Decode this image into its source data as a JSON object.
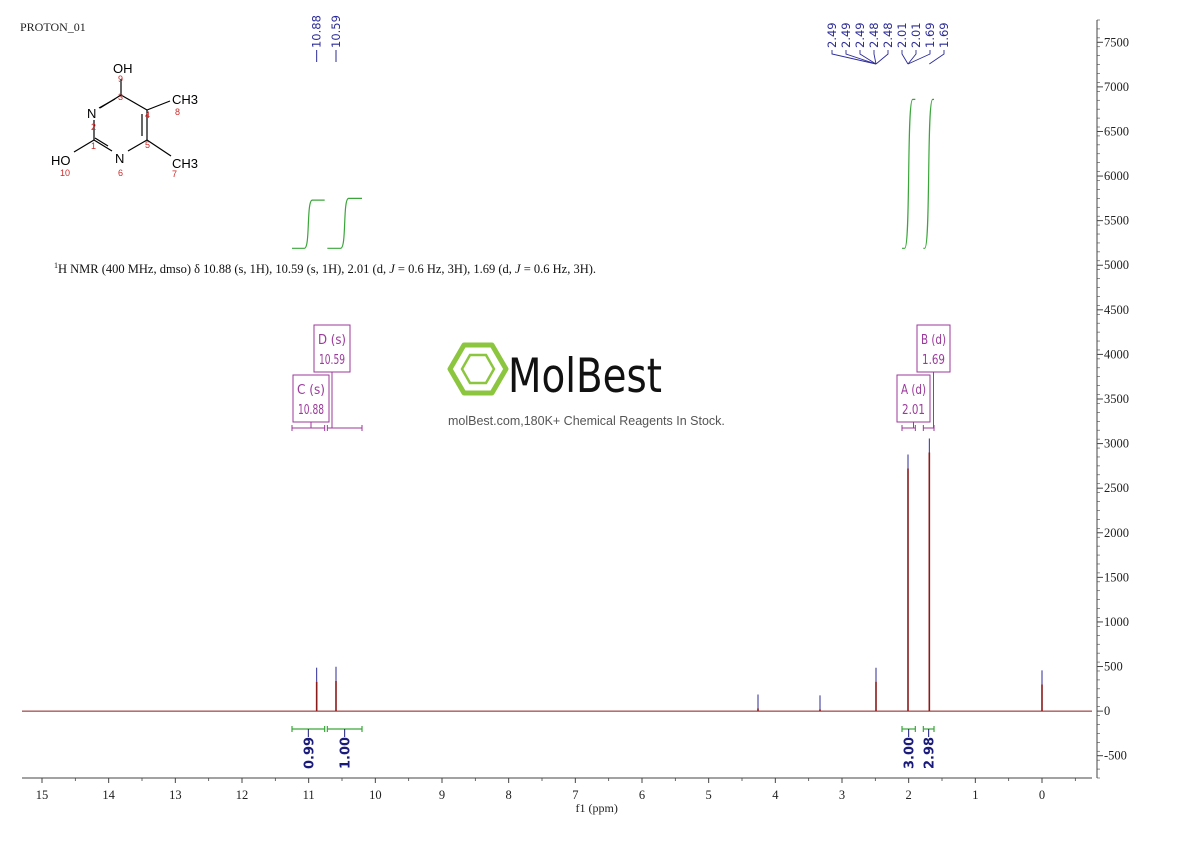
{
  "spectrum_label": "PROTON_01",
  "nmr_summary_parts": {
    "nucleus": "1",
    "head": "H NMR (400 MHz, dmso) δ 10.88 (s, 1H), 10.59 (s, 1H), 2.01 (d, ",
    "j1": "J",
    "mid": " = 0.6 Hz, 3H), 1.69 (d, ",
    "j2": "J",
    "tail": " = 0.6 Hz, 3H)."
  },
  "brand": {
    "name": "MolBest",
    "tagline": "molBest.com,180K+ Chemical Reagents In Stock.",
    "color": "#8cc63f"
  },
  "molecule": {
    "atoms": [
      {
        "label": "OH",
        "num": "9"
      },
      {
        "label": "N",
        "num": "2"
      },
      {
        "label": "",
        "num": "3"
      },
      {
        "label": "",
        "num": "4"
      },
      {
        "label": "CH3",
        "num": "8"
      },
      {
        "label": "",
        "num": "1"
      },
      {
        "label": "",
        "num": "5"
      },
      {
        "label": "HO",
        "num": "10"
      },
      {
        "label": "N",
        "num": "6"
      },
      {
        "label": "CH3",
        "num": "7"
      }
    ]
  },
  "colors": {
    "spectrum": "#8b1a1a",
    "peak_marker": "#2b2b9a",
    "integral": "#3aa63a",
    "multiplet_box": "#9b3a9b",
    "integral_value": "#1a1a7a",
    "axis": "#444444"
  },
  "chart_data": {
    "type": "line",
    "title": "",
    "xlabel": "f1 (ppm)",
    "ylabel": "",
    "xlim": [
      15.3,
      -0.75
    ],
    "ylim": [
      -750,
      7750
    ],
    "x_ticks": [
      15,
      14,
      13,
      12,
      11,
      10,
      9,
      8,
      7,
      6,
      5,
      4,
      3,
      2,
      1,
      0
    ],
    "y_ticks": [
      7500,
      7000,
      6500,
      6000,
      5500,
      5000,
      4500,
      4000,
      3500,
      3000,
      2500,
      2000,
      1500,
      1000,
      500,
      0,
      -500
    ],
    "peaks": [
      {
        "ppm": 10.88,
        "height": 330
      },
      {
        "ppm": 10.59,
        "height": 340
      },
      {
        "ppm": 4.26,
        "height": 30
      },
      {
        "ppm": 3.33,
        "height": 20
      },
      {
        "ppm": 2.49,
        "height": 330
      },
      {
        "ppm": 2.01,
        "height": 2720
      },
      {
        "ppm": 1.69,
        "height": 2900
      },
      {
        "ppm": 0.0,
        "height": 300
      }
    ],
    "peak_labels": [
      "10.88",
      "10.59",
      "2.49",
      "2.49",
      "2.49",
      "2.48",
      "2.48",
      "2.01",
      "2.01",
      "1.69",
      "1.69"
    ],
    "multiplets": [
      {
        "letter": "D (s)",
        "shift": "10.59",
        "from": 10.72,
        "to": 10.2
      },
      {
        "letter": "C (s)",
        "shift": "10.88",
        "from": 11.25,
        "to": 10.76
      },
      {
        "letter": "B (d)",
        "shift": "1.69",
        "from": 1.78,
        "to": 1.62
      },
      {
        "letter": "A (d)",
        "shift": "2.01",
        "from": 2.1,
        "to": 1.9
      }
    ],
    "integrals": [
      {
        "from": 11.25,
        "to": 10.76,
        "value": "0.99"
      },
      {
        "from": 10.72,
        "to": 10.2,
        "value": "1.00"
      },
      {
        "from": 2.1,
        "to": 1.9,
        "value": "3.00"
      },
      {
        "from": 1.78,
        "to": 1.62,
        "value": "2.98"
      }
    ]
  }
}
